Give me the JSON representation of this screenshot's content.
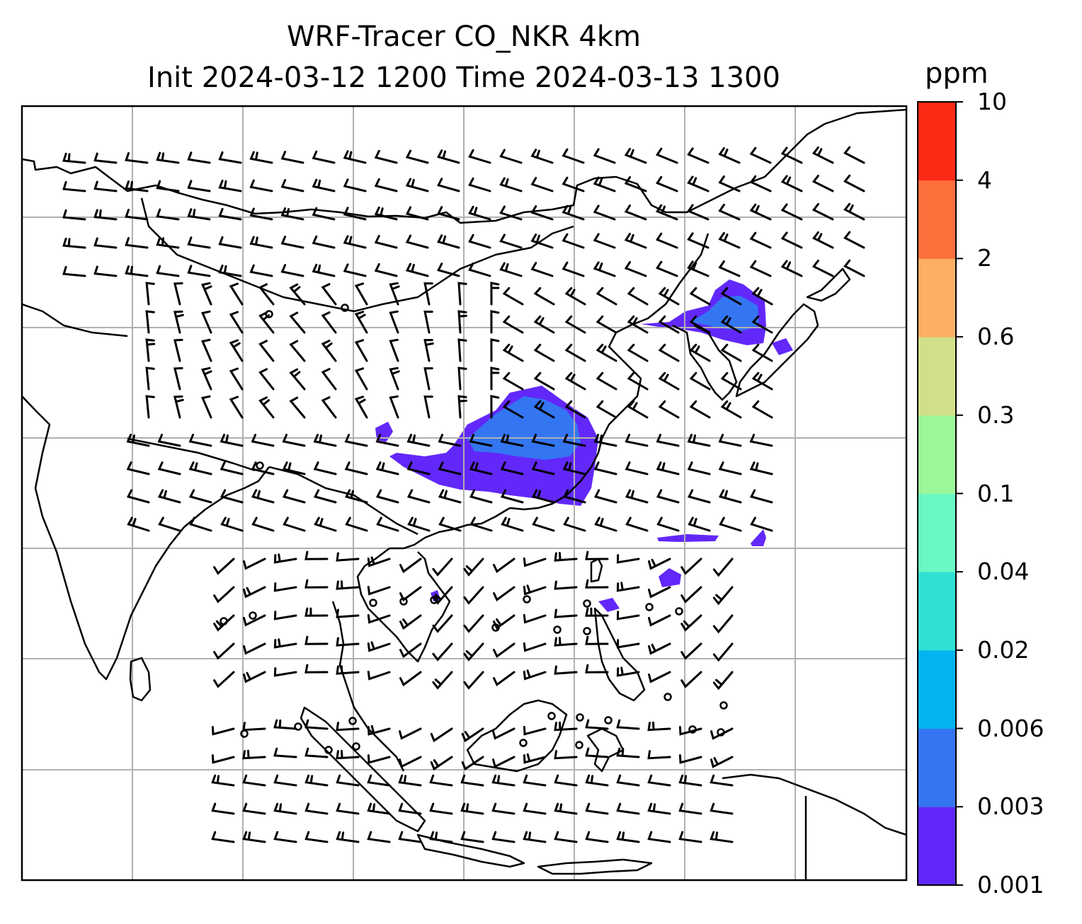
{
  "title": {
    "line1": "WRF-Tracer CO_NKR 4km",
    "line2": "Init 2024-03-12 1200 Time 2024-03-13 1300"
  },
  "colorbar": {
    "unit": "ppm",
    "levels": [
      "0.001",
      "0.003",
      "0.006",
      "0.02",
      "0.04",
      "0.1",
      "0.3",
      "0.6",
      "2",
      "4",
      "10"
    ],
    "colors": [
      "#6228fa",
      "#3476f2",
      "#03b4ee",
      "#30e0d4",
      "#6af8c2",
      "#9cf79a",
      "#d1e088",
      "#fdb064",
      "#fd703c",
      "#fd2a16"
    ]
  },
  "map": {
    "gridlines": true,
    "gridline_color": "#b0b0b0",
    "coastline_color": "#000000",
    "wind_barbs": true
  }
}
